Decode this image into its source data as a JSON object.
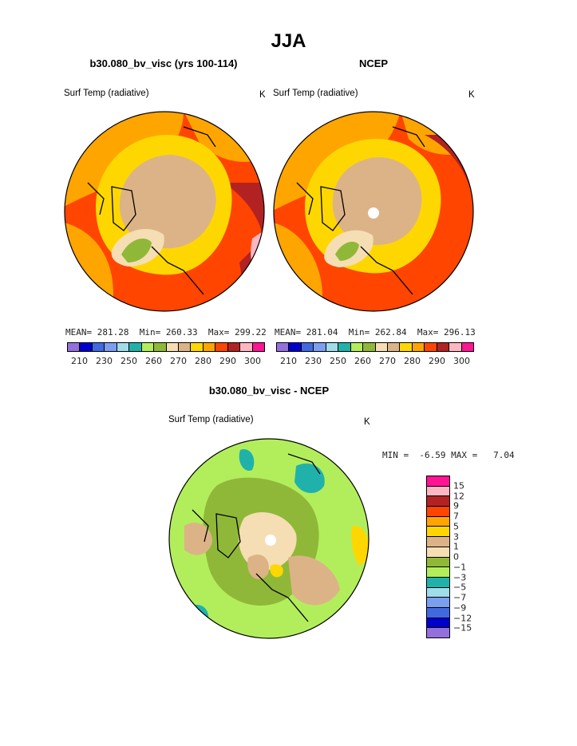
{
  "page_title": "JJA",
  "chart_data": [
    {
      "type": "heatmap",
      "title": "b30.080_bv_visc (yrs 100-114)",
      "variable_label": "Surf Temp (radiative)",
      "units": "K",
      "stats": {
        "mean_label": "MEAN=",
        "mean": "281.28",
        "min_label": "Min=",
        "min": "260.33",
        "max_label": "Max=",
        "max": "299.22"
      },
      "colorbar": {
        "levels": [
          "210",
          "230",
          "250",
          "260",
          "270",
          "280",
          "290",
          "300"
        ],
        "colors": [
          "#9370db",
          "#0000cd",
          "#4169e1",
          "#7b9ef0",
          "#a0dcea",
          "#20b2aa",
          "#b2ee5c",
          "#90b838",
          "#f5deb3",
          "#dcb387",
          "#ffd700",
          "#ffa500",
          "#ff4500",
          "#b22222",
          "#ffb6c1",
          "#ff1493"
        ]
      }
    },
    {
      "type": "heatmap",
      "title": "NCEP",
      "variable_label": "Surf Temp (radiative)",
      "units": "K",
      "stats": {
        "mean_label": "MEAN=",
        "mean": "281.04",
        "min_label": "Min=",
        "min": "262.84",
        "max_label": "Max=",
        "max": "296.13"
      },
      "colorbar": {
        "levels": [
          "210",
          "230",
          "250",
          "260",
          "270",
          "280",
          "290",
          "300"
        ],
        "colors": [
          "#9370db",
          "#0000cd",
          "#4169e1",
          "#7b9ef0",
          "#a0dcea",
          "#20b2aa",
          "#b2ee5c",
          "#90b838",
          "#f5deb3",
          "#dcb387",
          "#ffd700",
          "#ffa500",
          "#ff4500",
          "#b22222",
          "#ffb6c1",
          "#ff1493"
        ]
      }
    },
    {
      "type": "heatmap",
      "title": "b30.080_bv_visc - NCEP",
      "variable_label": "Surf Temp (radiative)",
      "units": "K",
      "stats": {
        "min_label": "MIN =",
        "min": "-6.59",
        "max_label": "MAX =",
        "max": "7.04"
      },
      "colorbar": {
        "levels": [
          "15",
          "12",
          "9",
          "7",
          "5",
          "3",
          "1",
          "0",
          "−1",
          "−3",
          "−5",
          "−7",
          "−9",
          "−12",
          "−15"
        ],
        "colors": [
          "#ff1493",
          "#ffb6c1",
          "#b22222",
          "#ff4500",
          "#ffa500",
          "#ffd700",
          "#dcb387",
          "#f5deb3",
          "#90b838",
          "#b2ee5c",
          "#20b2aa",
          "#a0dcea",
          "#7b9ef0",
          "#4169e1",
          "#0000cd",
          "#9370db"
        ]
      }
    }
  ]
}
